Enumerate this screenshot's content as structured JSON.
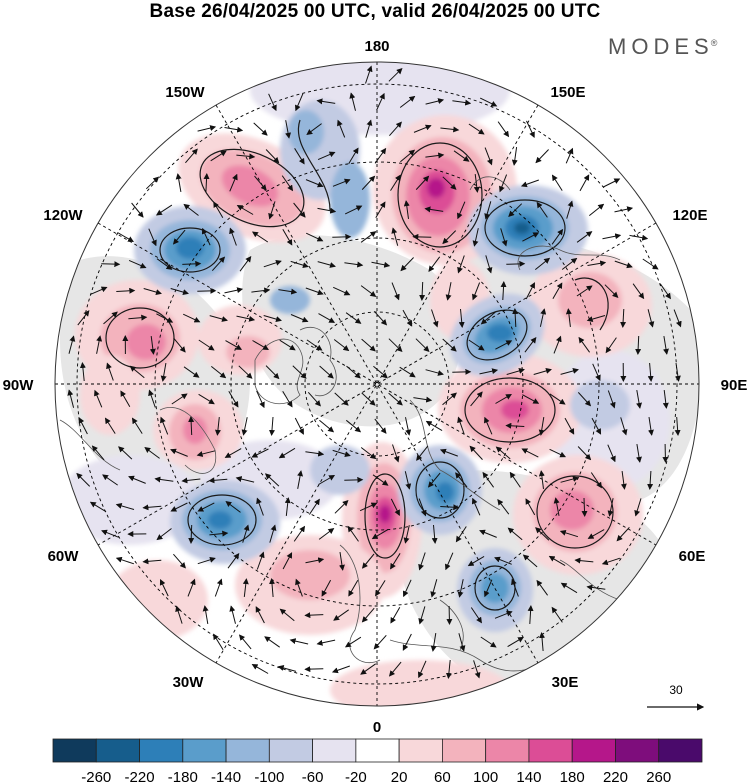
{
  "title": "Base 26/04/2025 00 UTC, valid 26/04/2025 00 UTC",
  "brand": {
    "name": "MODES",
    "mark": "®"
  },
  "longitude_labels": {
    "n180": "180",
    "e150": "150E",
    "e120": "120E",
    "e90": "90E",
    "e60": "60E",
    "e30": "30E",
    "s0": "0",
    "w30": "30W",
    "w60": "60W",
    "w90": "90W",
    "w120": "120W",
    "w150": "150W"
  },
  "vector_reference": {
    "value": "30",
    "icon": "arrow-right"
  },
  "colorbar": {
    "ticks": [
      "-260",
      "-220",
      "-180",
      "-140",
      "-100",
      "-60",
      "-20",
      "20",
      "60",
      "100",
      "140",
      "180",
      "220",
      "260"
    ],
    "colors": [
      "#0f3a5c",
      "#165d8c",
      "#2d7fb8",
      "#5a9dcb",
      "#95b6da",
      "#c2cbe3",
      "#e6e3f0",
      "#ffffff",
      "#f8d8da",
      "#f3b3bd",
      "#ec86a8",
      "#dc4d96",
      "#b5178a",
      "#7e0d7c",
      "#4a0a6b"
    ]
  },
  "colors": {
    "land_gray": "#e8e8e8",
    "coast": "#555555",
    "grid": "#000000"
  }
}
